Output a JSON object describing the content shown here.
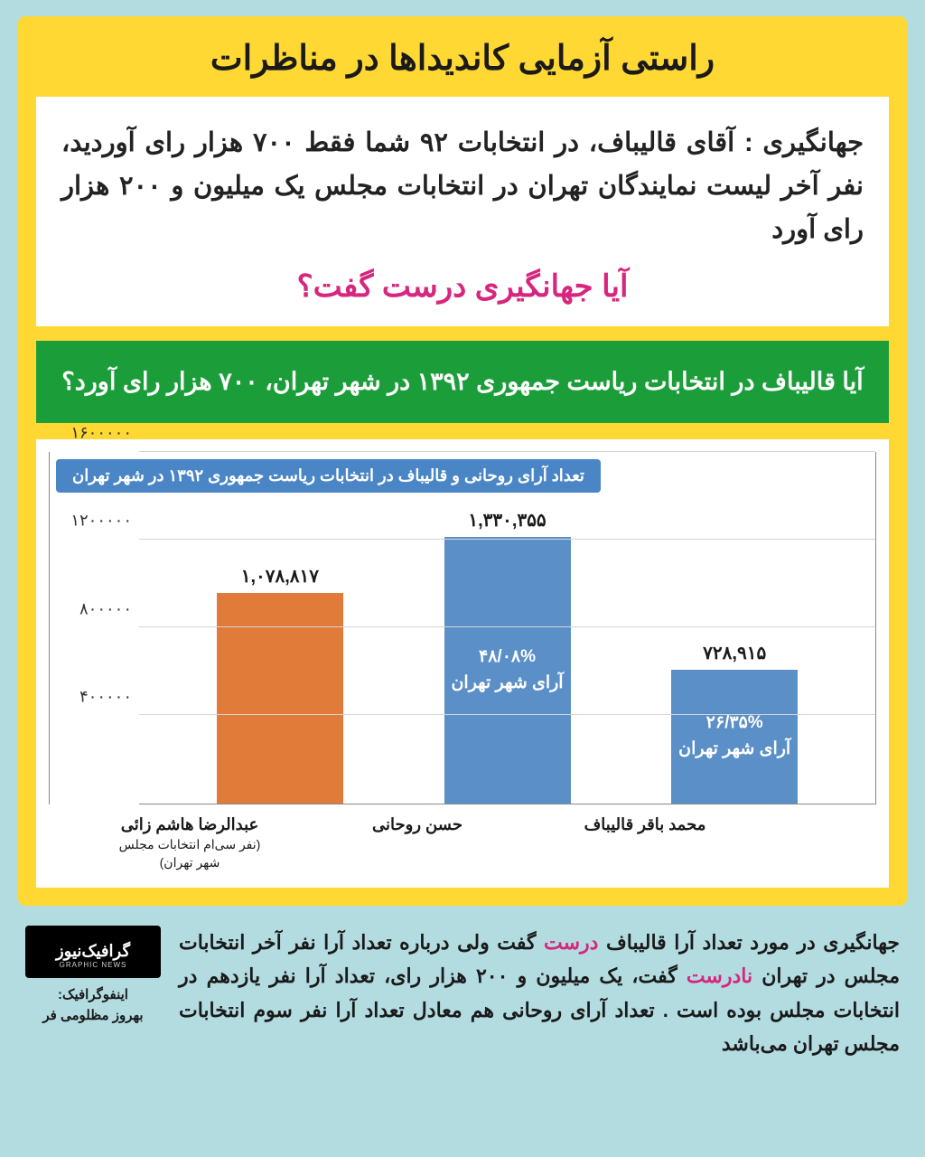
{
  "title": "راستی آزمایی کاندیداها در مناظرات",
  "quote": "جهانگیری : آقای قالیباف، در انتخابات ۹۲ شما فقط ۷۰۰ هزار رای آوردید، نفر آخر لیست نمایندگان تهران در انتخابات مجلس یک میلیون و ۲۰۰ هزار رای آورد",
  "question": "آیا جهانگیری درست گفت؟",
  "banner": "آیا قالیباف در انتخابات ریاست جمهوری ۱۳۹۲ در شهر تهران، ۷۰۰ هزار رای آورد؟",
  "chart": {
    "title": "تعداد آرای روحانی و قالیباف در انتخابات ریاست جمهوری ۱۳۹۲ در شهر تهران",
    "type": "bar",
    "y_max": 1600000,
    "y_ticks": [
      {
        "pos": 0,
        "label": ""
      },
      {
        "pos": 400000,
        "label": "۴۰۰۰۰۰"
      },
      {
        "pos": 800000,
        "label": "۸۰۰۰۰۰"
      },
      {
        "pos": 1200000,
        "label": "۱۲۰۰۰۰۰"
      },
      {
        "pos": 1600000,
        "label": "۱۶۰۰۰۰۰"
      }
    ],
    "bars": [
      {
        "label": "محمد باقر قالیباف",
        "sublabel": "",
        "value": 728915,
        "value_label": "۷۲۸,۹۱۵",
        "color": "#5b8fc7",
        "inner_text_1": "۲۶/۳۵%",
        "inner_text_2": "آرای شهر تهران"
      },
      {
        "label": "حسن روحانی",
        "sublabel": "",
        "value": 1330355,
        "value_label": "۱,۳۳۰,۳۵۵",
        "color": "#5b8fc7",
        "inner_text_1": "۴۸/۰۸%",
        "inner_text_2": "آرای شهر تهران"
      },
      {
        "label": "عبدالرضا هاشم زائی",
        "sublabel": "(نفر سی‌ام انتخابات مجلس شهر تهران)",
        "value": 1078817,
        "value_label": "۱,۰۷۸,۸۱۷",
        "color": "#e07b3a",
        "inner_text_1": "",
        "inner_text_2": ""
      }
    ],
    "background_color": "#ffffff",
    "grid_color": "#d5d5d5",
    "title_badge_color": "#4a86c5"
  },
  "footer": {
    "seg1": "جهانگیری در مورد تعداد آرا قالیباف ",
    "correct": "درست",
    "seg2": " گفت ولی درباره تعداد آرا نفر آخر انتخابات مجلس در تهران ",
    "incorrect": "نادرست",
    "seg3": " گفت، یک میلیون و ۲۰۰ هزار رای، تعداد آرا نفر یازدهم در انتخابات مجلس بوده است . تعداد آرای روحانی هم معادل تعداد آرا نفر سوم انتخابات مجلس تهران می‌باشد"
  },
  "credit": {
    "brand": "گرافیک‌نیوز",
    "tag": "GRAPHIC NEWS",
    "label": "اینفوگرافیک:",
    "author": "بهروز مظلومی فر"
  },
  "colors": {
    "page_bg": "#b3dce1",
    "card_bg": "#ffd833",
    "green": "#1b9e3a",
    "magenta": "#d6267e"
  }
}
